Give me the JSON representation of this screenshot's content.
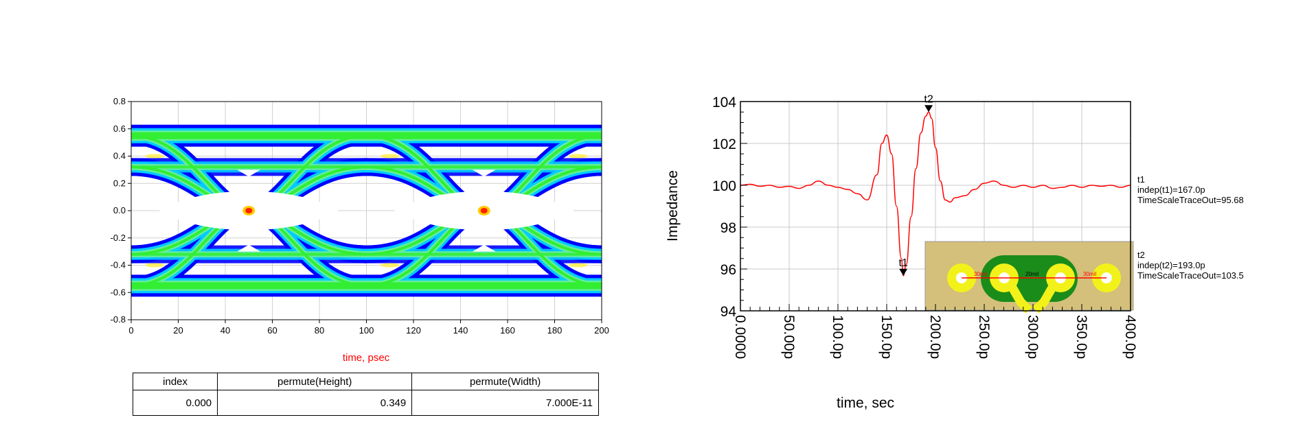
{
  "eye_diagram": {
    "xlabel": "time, psec",
    "colors": {
      "xlabel": "#ff0000",
      "outer_band": "#0000ff",
      "inner_band": "#00ccff",
      "transition": "#33ee33",
      "hot": "#ff2200"
    },
    "table": {
      "headers": [
        "index",
        "permute(Height)",
        "permute(Width)"
      ],
      "row": [
        "0.000",
        "0.349",
        "7.000E-11"
      ]
    }
  },
  "chart_data": [
    {
      "type": "heatmap",
      "title": "",
      "xlabel": "time, psec",
      "ylabel": "",
      "xlim": [
        0,
        200
      ],
      "ylim": [
        -0.8,
        0.8
      ],
      "x_ticks": [
        "0",
        "20",
        "40",
        "60",
        "80",
        "100",
        "120",
        "140",
        "160",
        "180",
        "200"
      ],
      "y_ticks": [
        "0.8",
        "0.6",
        "0.4",
        "0.2",
        "0.0",
        "-0.2",
        "-0.4",
        "-0.6",
        "-0.8"
      ],
      "grid": true,
      "description_values": {
        "eye_crossings_ps": [
          50,
          150
        ],
        "high_level": 0.55,
        "low_level": -0.55,
        "inner_levels": [
          0.32,
          -0.32
        ]
      }
    },
    {
      "type": "line",
      "title": "",
      "xlabel": "time, sec",
      "ylabel": "Impedance",
      "xlim": [
        0,
        400
      ],
      "ylim": [
        94,
        104
      ],
      "x_ticks": [
        "0.0000",
        "50.00p",
        "100.0p",
        "150.0p",
        "200.0p",
        "250.0p",
        "300.0p",
        "350.0p",
        "400.0p"
      ],
      "y_ticks": [
        "104",
        "102",
        "100",
        "98",
        "96",
        "94"
      ],
      "grid": true,
      "series": [
        {
          "color": "#ff0000",
          "x": [
            0,
            10,
            20,
            30,
            40,
            50,
            60,
            70,
            80,
            90,
            100,
            110,
            120,
            130,
            140,
            145,
            150,
            155,
            160,
            165,
            167,
            170,
            175,
            180,
            185,
            190,
            193,
            196,
            200,
            205,
            210,
            215,
            220,
            230,
            240,
            250,
            260,
            270,
            280,
            290,
            300,
            310,
            320,
            330,
            340,
            350,
            360,
            370,
            380,
            390,
            400
          ],
          "y": [
            100.0,
            100.05,
            99.95,
            100.0,
            99.9,
            99.95,
            99.85,
            100.0,
            100.2,
            100.0,
            99.9,
            99.8,
            99.6,
            99.3,
            100.5,
            102.0,
            102.4,
            101.5,
            99.0,
            96.5,
            95.68,
            96.2,
            98.5,
            100.8,
            102.5,
            103.3,
            103.5,
            103.2,
            101.8,
            100.2,
            99.3,
            99.2,
            99.4,
            99.5,
            99.8,
            100.1,
            100.2,
            100.0,
            99.9,
            100.0,
            99.9,
            100.0,
            99.85,
            99.9,
            100.0,
            99.9,
            100.0,
            99.95,
            100.0,
            99.9,
            100.0
          ]
        }
      ],
      "markers": [
        {
          "name": "t1",
          "x": 167.0,
          "y": 95.68,
          "lines": [
            "t1",
            "indep(t1)=167.0p",
            "TimeScaleTraceOut=95.68"
          ]
        },
        {
          "name": "t2",
          "x": 193.0,
          "y": 103.5,
          "lines": [
            "t2",
            "indep(t2)=193.0p",
            "TimeScaleTraceOut=103.5"
          ]
        }
      ]
    }
  ],
  "inset": {
    "left_label": "30mil",
    "center_label": "20mil",
    "right_label": "30mil",
    "colors": {
      "board": "#d4c07a",
      "copper": "#1a8c1a",
      "pad": "#f2f21a",
      "trace": "#ff0000"
    }
  }
}
